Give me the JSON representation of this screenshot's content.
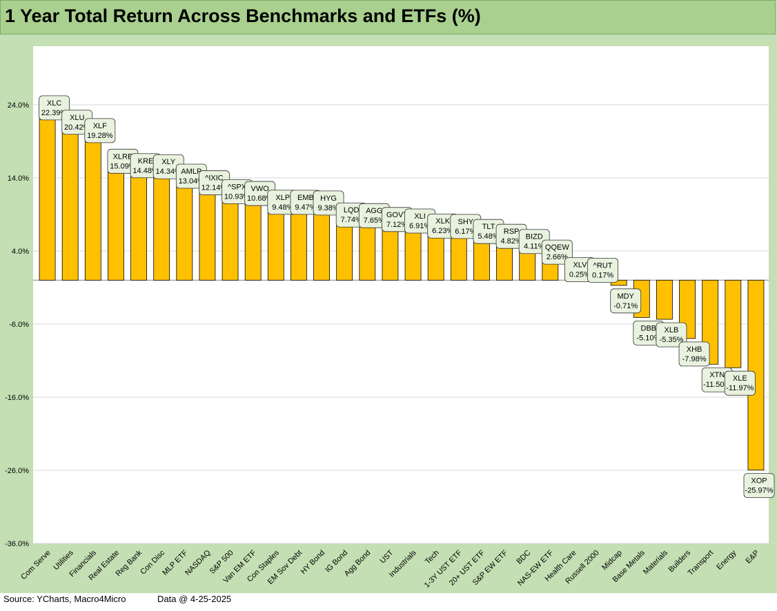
{
  "title": "1 Year Total Return Across Benchmarks and ETFs (%)",
  "footer": {
    "source": "Source: YCharts, Macro4Micro",
    "data_date": "Data @ 4-25-2025"
  },
  "colors": {
    "frame": "#c4dfb3",
    "title_bar": "#a9d08e",
    "bar": "#ffc000",
    "bar_border": "#000000",
    "label_bg": "#e8f2df",
    "label_border": "#333333",
    "grid": "#d9d9d9"
  },
  "chart_data": {
    "type": "bar",
    "title": "1 Year Total Return Across Benchmarks and ETFs (%)",
    "xlabel": "",
    "ylabel": "",
    "ylim": [
      -36,
      32
    ],
    "y_ticks": [
      24,
      14,
      4,
      -6,
      -16,
      -26,
      -36
    ],
    "y_tick_labels": [
      "24.0%",
      "14.0%",
      "4.0%",
      "-6.0%",
      "-16.0%",
      "-26.0%",
      "-36.0%"
    ],
    "grid": true,
    "legend": "none",
    "categories": [
      "Com Serve",
      "Utilities",
      "Financials",
      "Real Estate",
      "Reg Bank",
      "Con Disc",
      "MLP ETF",
      "NASDAQ",
      "S&P 500",
      "Van EM ETF",
      "Con Staples",
      "EM Sov Debt",
      "HY Bond",
      "IG Bond",
      "Agg Bond",
      "UST",
      "Industrials",
      "Tech",
      "1-3Y UST ETF",
      "20+ UST ETF",
      "S&P EW ETF",
      "BDC",
      "NAS-EW ETF",
      "Health Care",
      "Russell 2000",
      "Midcap",
      "Base Metals",
      "Materials",
      "Builders",
      "Transport",
      "Energy",
      "E&P"
    ],
    "tickers": [
      "XLC",
      "XLU",
      "XLF",
      "XLRE",
      "KRE",
      "XLY",
      "AMLP",
      "^IXIC",
      "^SPX",
      "VWO",
      "XLP",
      "EMB",
      "HYG",
      "LQD",
      "AGG",
      "GOVT",
      "XLI",
      "XLK",
      "SHY",
      "TLT",
      "RSP",
      "BIZD",
      "QQEW",
      "XLV",
      "^RUT",
      "MDY",
      "DBB",
      "XLB",
      "XHB",
      "XTN",
      "XLE",
      "XOP"
    ],
    "values": [
      22.39,
      20.42,
      19.28,
      15.09,
      14.48,
      14.34,
      13.04,
      12.14,
      10.93,
      10.68,
      9.48,
      9.47,
      9.38,
      7.74,
      7.65,
      7.12,
      6.91,
      6.23,
      6.17,
      5.48,
      4.82,
      4.11,
      2.66,
      0.25,
      0.17,
      -0.71,
      -5.1,
      -5.35,
      -7.98,
      -11.5,
      -11.97,
      -25.97
    ],
    "value_labels": [
      "22.39%",
      "20.42%",
      "19.28%",
      "15.09%",
      "14.48%",
      "14.34%",
      "13.04%",
      "12.14%",
      "10.93%",
      "10.68%",
      "9.48%",
      "9.47%",
      "9.38%",
      "7.74%",
      "7.65%",
      "7.12%",
      "6.91%",
      "6.23%",
      "6.17%",
      "5.48%",
      "4.82%",
      "4.11%",
      "2.66%",
      "0.25%",
      "0.17%",
      "-0.71%",
      "-5.10%",
      "-5.35%",
      "-7.98%",
      "-11.50%",
      "-11.97%",
      "-25.97%"
    ]
  }
}
